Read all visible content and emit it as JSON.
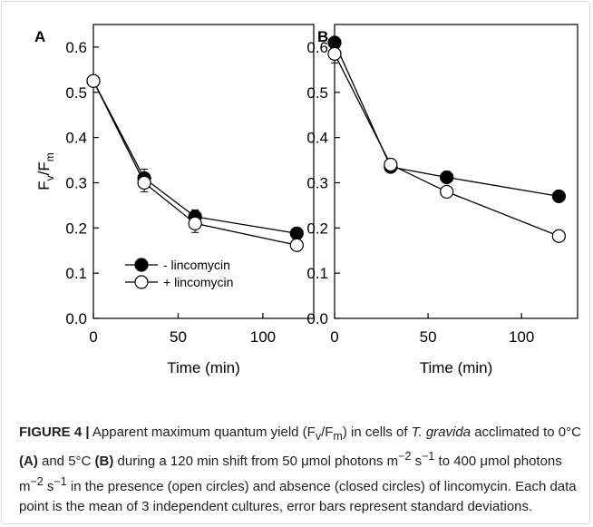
{
  "chart_data": [
    {
      "type": "line",
      "panel_label": "A",
      "xlabel": "Time (min)",
      "ylabel": "Fv/Fm",
      "ylabel_main": "F",
      "ylabel_sub1": "v",
      "ylabel_slash": "/F",
      "ylabel_sub2": "m",
      "xlim": [
        0,
        130
      ],
      "ylim": [
        0,
        0.65
      ],
      "xticks": [
        0,
        50,
        100
      ],
      "xtick_labels": [
        "0",
        "50",
        "100"
      ],
      "yticks": [
        0,
        0.1,
        0.2,
        0.3,
        0.4,
        0.5,
        0.6
      ],
      "ytick_labels": [
        "0.0",
        "0.1",
        "0.2",
        "0.3",
        "0.4",
        "0.5",
        "0.6"
      ],
      "legend": "lower-left",
      "series": [
        {
          "name": "- lincomycin",
          "marker": "filled",
          "x": [
            0,
            30,
            60,
            120
          ],
          "y": [
            0.525,
            0.31,
            0.225,
            0.188
          ],
          "err": [
            0,
            0.02,
            0.015,
            0.008
          ]
        },
        {
          "name": "+ lincomycin",
          "marker": "open",
          "x": [
            0,
            30,
            60,
            120
          ],
          "y": [
            0.525,
            0.3,
            0.21,
            0.162
          ],
          "err": [
            0,
            0.02,
            0.02,
            0.008
          ]
        }
      ]
    },
    {
      "type": "line",
      "panel_label": "B",
      "xlabel": "Time (min)",
      "xlim": [
        0,
        130
      ],
      "ylim": [
        0,
        0.65
      ],
      "xticks": [
        0,
        50,
        100
      ],
      "xtick_labels": [
        "0",
        "50",
        "100"
      ],
      "yticks": [
        0,
        0.1,
        0.2,
        0.3,
        0.4,
        0.5,
        0.6
      ],
      "ytick_labels": [
        "0.0",
        "0.1",
        "0.2",
        "0.3",
        "0.4",
        "0.5",
        "0.6"
      ],
      "series": [
        {
          "name": "- lincomycin",
          "marker": "filled",
          "x": [
            0,
            30,
            60,
            120
          ],
          "y": [
            0.61,
            0.335,
            0.312,
            0.27
          ],
          "err": [
            0,
            0,
            0,
            0
          ]
        },
        {
          "name": "+ lincomycin",
          "marker": "open",
          "x": [
            0,
            30,
            60,
            120
          ],
          "y": [
            0.585,
            0.34,
            0.28,
            0.182
          ],
          "err": [
            0.02,
            0,
            0,
            0
          ]
        }
      ]
    }
  ],
  "caption": {
    "label": "FIGURE 4 |",
    "t1": " Apparent maximum quantum yield (F",
    "s1": "v",
    "t2": "/F",
    "s2": "m",
    "t3": ") in cells of ",
    "species": "T. gravida",
    "t4": " acclimated to 0°C ",
    "refA": "(A)",
    "t5": " and 5°C ",
    "refB": "(B)",
    "t6": " during a 120 min shift from 50 μmol photons m",
    "e1": "−2",
    "t7": " s",
    "e2": "−1",
    "t8": " to 400 μmol photons m",
    "e3": "−2",
    "t9": " s",
    "e4": "−1",
    "t10": " in the presence (open circles) and absence (closed circles) of lincomycin. Each data point is the mean of 3 independent cultures, error bars represent standard deviations."
  }
}
